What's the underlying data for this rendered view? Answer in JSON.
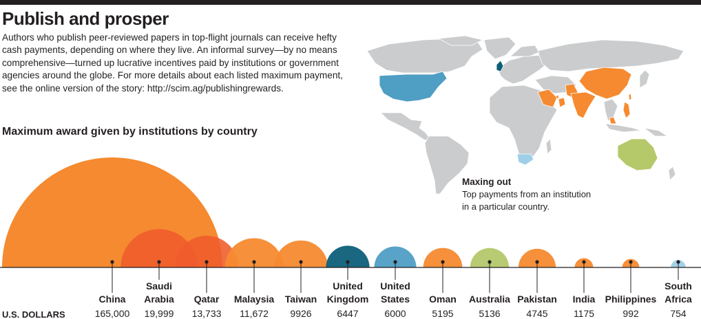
{
  "header": {
    "title": "Publish and prosper",
    "intro": "Authors who publish peer-reviewed papers in top-flight journals can receive hefty cash payments, depending on where they live. An informal survey—by no means comprehensive—turned up lucrative incentives paid by institutions or government agencies around the globe. For more details about each listed maximum payment, see the online version of the story: http://scim.ag/publishingrewards."
  },
  "section_title": "Maximum award given by institutions by country",
  "map": {
    "label_title": "Maxing out",
    "label_text": "Top payments from an institution in a particular country."
  },
  "axis_label": "U.S. DOLLARS",
  "colors": {
    "orange": "#f58a30",
    "red": "#ef5b2b",
    "dark_teal": "#0d5f79",
    "blue": "#4f9ec4",
    "green": "#b5c86a",
    "light_blue": "#9fcfe8",
    "land": "#cbcccd"
  },
  "chart_data": {
    "type": "bubble",
    "title": "Maximum award given by institutions by country",
    "unit": "U.S. DOLLARS",
    "categories": [
      {
        "label": [
          "China"
        ],
        "value_label": "165,000",
        "value": 165000,
        "color": "orange"
      },
      {
        "label": [
          "Saudi",
          "Arabia"
        ],
        "value_label": "19,999",
        "value": 19999,
        "color": "red"
      },
      {
        "label": [
          "Qatar"
        ],
        "value_label": "13,733",
        "value": 13733,
        "color": "red"
      },
      {
        "label": [
          "Malaysia"
        ],
        "value_label": "11,672",
        "value": 11672,
        "color": "orange"
      },
      {
        "label": [
          "Taiwan"
        ],
        "value_label": "9926",
        "value": 9926,
        "color": "orange"
      },
      {
        "label": [
          "United",
          "Kingdom"
        ],
        "value_label": "6447",
        "value": 6447,
        "color": "dark_teal"
      },
      {
        "label": [
          "United",
          "States"
        ],
        "value_label": "6000",
        "value": 6000,
        "color": "blue"
      },
      {
        "label": [
          "Oman"
        ],
        "value_label": "5195",
        "value": 5195,
        "color": "orange"
      },
      {
        "label": [
          "Australia"
        ],
        "value_label": "5136",
        "value": 5136,
        "color": "green"
      },
      {
        "label": [
          "Pakistan"
        ],
        "value_label": "4745",
        "value": 4745,
        "color": "orange"
      },
      {
        "label": [
          "India"
        ],
        "value_label": "1175",
        "value": 1175,
        "color": "orange"
      },
      {
        "label": [
          "Philippines"
        ],
        "value_label": "992",
        "value": 992,
        "color": "orange"
      },
      {
        "label": [
          "South",
          "Africa"
        ],
        "value_label": "754",
        "value": 754,
        "color": "light_blue"
      }
    ]
  }
}
